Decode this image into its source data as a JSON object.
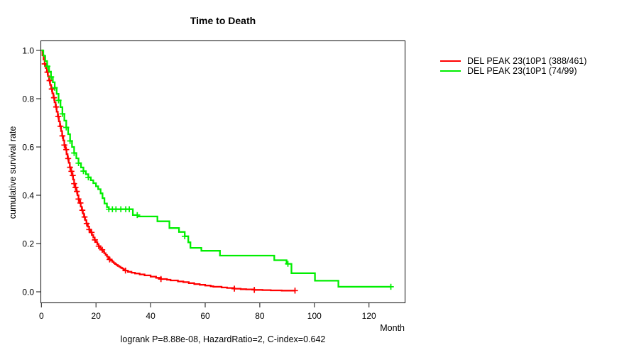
{
  "chart_data": {
    "type": "line",
    "subtype": "kaplan-meier-survival",
    "title": "Time to Death",
    "xlabel": "Month",
    "ylabel": "cumulative survival rate",
    "caption": "logrank P=8.88e-08, HazardRatio=2, C-index=0.642",
    "xlim": [
      0,
      133
    ],
    "ylim": [
      0,
      1.0
    ],
    "grid": false,
    "legend_position": "right-outside",
    "x_tick_values": [
      0,
      20,
      40,
      60,
      80,
      100,
      120
    ],
    "x_tick_labels": [
      "0",
      "20",
      "40",
      "60",
      "80",
      "100",
      "120"
    ],
    "y_tick_values": [
      0.0,
      0.2,
      0.4,
      0.6,
      0.8,
      1.0
    ],
    "y_tick_labels": [
      "0.0",
      "0.2",
      "0.4",
      "0.6",
      "0.8",
      "1.0"
    ],
    "series": [
      {
        "name": "DEL PEAK 23(10P1 (388/461)",
        "color": "#ff0000",
        "events_total": "388/461",
        "points": [
          [
            0,
            1.0
          ],
          [
            0.4,
            0.98
          ],
          [
            0.8,
            0.962
          ],
          [
            1.2,
            0.944
          ],
          [
            1.6,
            0.927
          ],
          [
            2,
            0.91
          ],
          [
            2.4,
            0.893
          ],
          [
            2.8,
            0.875
          ],
          [
            3.2,
            0.857
          ],
          [
            3.6,
            0.84
          ],
          [
            4,
            0.822
          ],
          [
            4.4,
            0.804
          ],
          [
            4.8,
            0.785
          ],
          [
            5.2,
            0.766
          ],
          [
            5.6,
            0.746
          ],
          [
            6,
            0.726
          ],
          [
            6.4,
            0.706
          ],
          [
            6.8,
            0.686
          ],
          [
            7.2,
            0.666
          ],
          [
            7.6,
            0.646
          ],
          [
            8,
            0.627
          ],
          [
            8.4,
            0.608
          ],
          [
            8.8,
            0.589
          ],
          [
            9.2,
            0.57
          ],
          [
            9.6,
            0.552
          ],
          [
            10,
            0.534
          ],
          [
            10.4,
            0.516
          ],
          [
            10.8,
            0.499
          ],
          [
            11.2,
            0.482
          ],
          [
            11.6,
            0.465
          ],
          [
            12,
            0.448
          ],
          [
            12.4,
            0.432
          ],
          [
            12.8,
            0.416
          ],
          [
            13.2,
            0.4
          ],
          [
            13.6,
            0.384
          ],
          [
            14,
            0.368
          ],
          [
            14.4,
            0.353
          ],
          [
            14.8,
            0.338
          ],
          [
            15.2,
            0.324
          ],
          [
            15.6,
            0.31
          ],
          [
            16,
            0.297
          ],
          [
            16.5,
            0.283
          ],
          [
            17,
            0.27
          ],
          [
            17.5,
            0.258
          ],
          [
            18,
            0.246
          ],
          [
            18.5,
            0.235
          ],
          [
            19,
            0.225
          ],
          [
            19.5,
            0.215
          ],
          [
            20,
            0.206
          ],
          [
            20.5,
            0.197
          ],
          [
            21,
            0.189
          ],
          [
            21.5,
            0.181
          ],
          [
            22,
            0.174
          ],
          [
            22.5,
            0.167
          ],
          [
            23,
            0.16
          ],
          [
            23.5,
            0.153
          ],
          [
            24,
            0.146
          ],
          [
            24.5,
            0.14
          ],
          [
            25,
            0.134
          ],
          [
            25.5,
            0.129
          ],
          [
            26,
            0.124
          ],
          [
            26.5,
            0.119
          ],
          [
            27,
            0.115
          ],
          [
            27.5,
            0.111
          ],
          [
            28,
            0.107
          ],
          [
            28.5,
            0.104
          ],
          [
            29,
            0.1
          ],
          [
            29.5,
            0.097
          ],
          [
            30,
            0.093
          ],
          [
            30.8,
            0.088
          ],
          [
            31.7,
            0.083
          ],
          [
            33,
            0.079
          ],
          [
            34.3,
            0.076
          ],
          [
            36,
            0.072
          ],
          [
            37.8,
            0.068
          ],
          [
            40,
            0.063
          ],
          [
            42,
            0.058
          ],
          [
            43.8,
            0.053
          ],
          [
            46,
            0.05
          ],
          [
            47.3,
            0.047
          ],
          [
            50,
            0.043
          ],
          [
            52,
            0.04
          ],
          [
            54,
            0.036
          ],
          [
            56,
            0.032
          ],
          [
            58,
            0.029
          ],
          [
            60,
            0.026
          ],
          [
            62,
            0.023
          ],
          [
            63,
            0.021
          ],
          [
            66,
            0.018
          ],
          [
            68,
            0.016
          ],
          [
            70.7,
            0.013
          ],
          [
            73,
            0.011
          ],
          [
            75,
            0.01
          ],
          [
            78,
            0.008
          ],
          [
            81,
            0.007
          ],
          [
            84,
            0.006
          ],
          [
            88,
            0.005
          ],
          [
            92.9,
            0.005
          ]
        ],
        "censor_months": [
          1.2,
          2.2,
          3.0,
          3.8,
          4.6,
          5.4,
          6.2,
          7.0,
          7.7,
          8.4,
          9.1,
          9.8,
          10.5,
          11.0,
          11.5,
          12.0,
          12.5,
          13.0,
          13.6,
          14.3,
          15.0,
          15.8,
          16.6,
          17.5,
          18.4,
          19.6,
          21.0,
          22.3,
          25.0,
          30.8,
          43.8,
          70.7,
          78.0,
          92.9
        ]
      },
      {
        "name": "DEL PEAK 23(10P1 (74/99)",
        "color": "#00ee00",
        "events_total": "74/99",
        "points": [
          [
            0,
            1.0
          ],
          [
            0.7,
            0.978
          ],
          [
            1.4,
            0.956
          ],
          [
            2.1,
            0.934
          ],
          [
            2.8,
            0.912
          ],
          [
            3.5,
            0.89
          ],
          [
            4.2,
            0.868
          ],
          [
            4.9,
            0.845
          ],
          [
            5.6,
            0.82
          ],
          [
            6.3,
            0.793
          ],
          [
            7,
            0.765
          ],
          [
            7.7,
            0.737
          ],
          [
            8.4,
            0.709
          ],
          [
            9.1,
            0.681
          ],
          [
            9.8,
            0.653
          ],
          [
            10.5,
            0.625
          ],
          [
            11.2,
            0.6
          ],
          [
            12,
            0.575
          ],
          [
            12.8,
            0.553
          ],
          [
            13.6,
            0.533
          ],
          [
            14.5,
            0.515
          ],
          [
            15.4,
            0.5
          ],
          [
            16.3,
            0.487
          ],
          [
            17.2,
            0.474
          ],
          [
            18.1,
            0.462
          ],
          [
            19,
            0.45
          ],
          [
            20,
            0.437
          ],
          [
            20.8,
            0.425
          ],
          [
            21.7,
            0.408
          ],
          [
            22.4,
            0.388
          ],
          [
            23.1,
            0.366
          ],
          [
            24,
            0.351
          ],
          [
            24.7,
            0.342
          ],
          [
            33.5,
            0.318
          ],
          [
            35.2,
            0.312
          ],
          [
            42.5,
            0.292
          ],
          [
            46.9,
            0.264
          ],
          [
            50.4,
            0.248
          ],
          [
            52.5,
            0.23
          ],
          [
            53.8,
            0.205
          ],
          [
            54.6,
            0.182
          ],
          [
            58.6,
            0.17
          ],
          [
            65.4,
            0.15
          ],
          [
            85.3,
            0.131
          ],
          [
            89.8,
            0.116
          ],
          [
            91.6,
            0.077
          ],
          [
            100.2,
            0.046
          ],
          [
            108.8,
            0.021
          ],
          [
            128,
            0.021
          ]
        ],
        "censor_months": [
          2.2,
          3.6,
          4.9,
          6.3,
          7.7,
          9.1,
          10.5,
          12.0,
          13.6,
          15.4,
          17.2,
          24.7,
          26.0,
          27.3,
          29.1,
          30.9,
          32.2,
          35.1,
          52.5,
          90.3,
          128
        ]
      }
    ]
  }
}
